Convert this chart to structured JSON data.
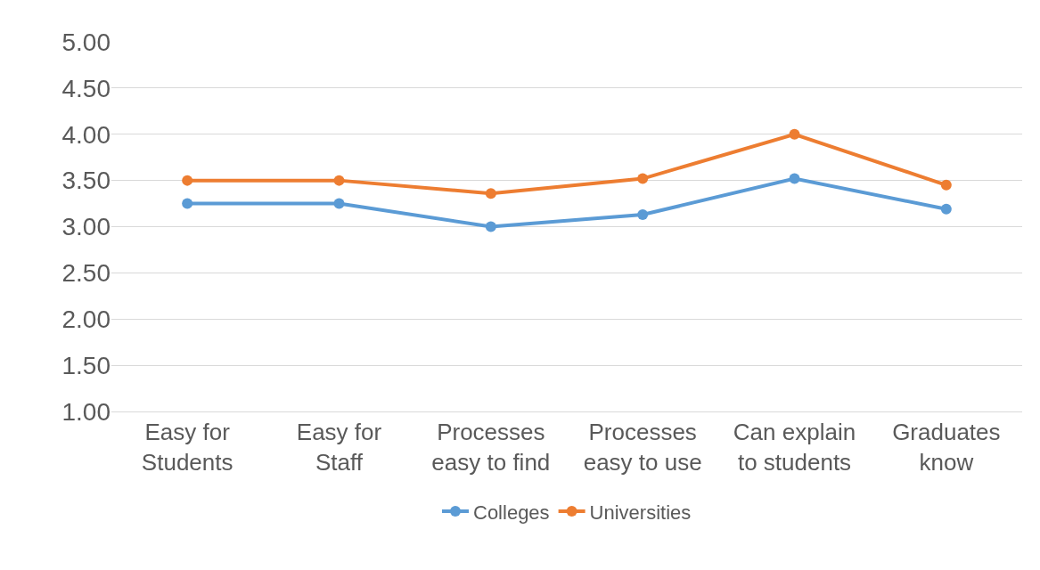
{
  "chart_data": {
    "type": "line",
    "categories": [
      "Easy for Students",
      "Easy for Staff",
      "Processes easy to find",
      "Processes easy to use",
      "Can explain to students",
      "Graduates know"
    ],
    "series": [
      {
        "name": "Colleges",
        "color": "#5b9bd5",
        "values": [
          3.25,
          3.25,
          3.0,
          3.13,
          3.52,
          3.19
        ]
      },
      {
        "name": "Universities",
        "color": "#ed7d31",
        "values": [
          3.5,
          3.5,
          3.36,
          3.52,
          4.0,
          3.45
        ]
      }
    ],
    "ylim": [
      1,
      5
    ],
    "yticks": [
      {
        "value": 1,
        "label": "1.00"
      },
      {
        "value": 1.5,
        "label": "1.50"
      },
      {
        "value": 2,
        "label": "2.00"
      },
      {
        "value": 2.5,
        "label": "2.50"
      },
      {
        "value": 3,
        "label": "3.00"
      },
      {
        "value": 3.5,
        "label": "3.50"
      },
      {
        "value": 4,
        "label": "4.00"
      },
      {
        "value": 4.5,
        "label": "4.50"
      },
      {
        "value": 5,
        "label": "5.00"
      }
    ],
    "grid": "y",
    "legend": "bottom",
    "marker": "circle",
    "line_style": "solid"
  }
}
